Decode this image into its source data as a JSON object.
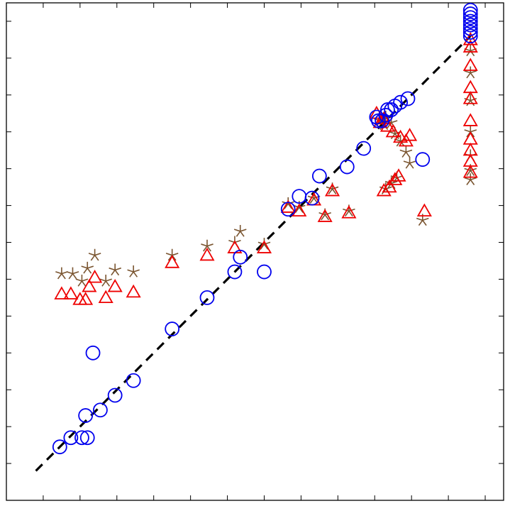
{
  "chart_data": {
    "type": "scatter",
    "title": "",
    "xlabel": "",
    "ylabel": "",
    "xlim": [
      0,
      13.5
    ],
    "ylim": [
      0,
      13.5
    ],
    "grid": false,
    "reference_line": {
      "x": [
        0.8,
        12.6
      ],
      "y": [
        0.8,
        12.6
      ],
      "style": "dashed",
      "color": "#000000"
    },
    "colors": {
      "circle": "#0000ee",
      "triangle": "#ee0000",
      "star": "#7a5530"
    },
    "series": [
      {
        "marker": "circle",
        "points": [
          [
            1.45,
            1.45
          ],
          [
            1.75,
            1.7
          ],
          [
            2.05,
            1.7
          ],
          [
            2.2,
            1.7
          ],
          [
            2.15,
            2.3
          ],
          [
            2.55,
            2.45
          ],
          [
            2.95,
            2.85
          ],
          [
            3.45,
            3.25
          ],
          [
            2.35,
            4.0
          ],
          [
            4.5,
            4.65
          ],
          [
            5.45,
            5.5
          ],
          [
            6.2,
            6.2
          ],
          [
            6.35,
            6.6
          ],
          [
            7.0,
            6.2
          ],
          [
            7.65,
            7.9
          ],
          [
            7.95,
            8.25
          ],
          [
            8.3,
            8.2
          ],
          [
            8.5,
            8.8
          ],
          [
            9.25,
            9.05
          ],
          [
            9.7,
            9.55
          ],
          [
            10.05,
            10.4
          ],
          [
            10.2,
            10.3
          ],
          [
            10.3,
            10.45
          ],
          [
            10.35,
            10.6
          ],
          [
            10.45,
            10.6
          ],
          [
            10.55,
            10.7
          ],
          [
            10.7,
            10.8
          ],
          [
            10.9,
            10.9
          ],
          [
            10.1,
            10.3
          ],
          [
            11.3,
            9.25
          ],
          [
            12.6,
            12.8
          ],
          [
            12.6,
            12.9
          ],
          [
            12.6,
            13.0
          ],
          [
            12.6,
            13.1
          ],
          [
            12.6,
            13.2
          ],
          [
            12.6,
            13.3
          ],
          [
            12.6,
            12.6
          ],
          [
            12.6,
            12.7
          ]
        ]
      },
      {
        "marker": "triangle",
        "points": [
          [
            1.5,
            5.6
          ],
          [
            1.75,
            5.6
          ],
          [
            2.0,
            5.45
          ],
          [
            2.15,
            5.45
          ],
          [
            2.25,
            5.8
          ],
          [
            2.4,
            6.05
          ],
          [
            2.7,
            5.5
          ],
          [
            2.95,
            5.8
          ],
          [
            3.45,
            5.65
          ],
          [
            4.5,
            6.45
          ],
          [
            5.45,
            6.65
          ],
          [
            6.2,
            6.85
          ],
          [
            7.0,
            6.85
          ],
          [
            7.65,
            7.95
          ],
          [
            7.95,
            7.85
          ],
          [
            8.35,
            8.15
          ],
          [
            8.65,
            7.7
          ],
          [
            8.85,
            8.4
          ],
          [
            9.3,
            7.8
          ],
          [
            10.05,
            10.5
          ],
          [
            10.15,
            10.25
          ],
          [
            10.25,
            10.35
          ],
          [
            10.35,
            10.15
          ],
          [
            10.5,
            10.0
          ],
          [
            10.7,
            9.85
          ],
          [
            10.85,
            9.75
          ],
          [
            10.95,
            9.9
          ],
          [
            11.35,
            7.85
          ],
          [
            10.25,
            8.4
          ],
          [
            10.4,
            8.5
          ],
          [
            10.55,
            8.7
          ],
          [
            10.65,
            8.8
          ],
          [
            12.6,
            12.5
          ],
          [
            12.6,
            12.3
          ],
          [
            12.6,
            11.8
          ],
          [
            12.6,
            11.2
          ],
          [
            12.6,
            10.9
          ],
          [
            12.6,
            10.3
          ],
          [
            12.6,
            9.8
          ],
          [
            12.6,
            9.5
          ],
          [
            12.6,
            9.2
          ],
          [
            12.6,
            8.9
          ]
        ]
      },
      {
        "marker": "star",
        "points": [
          [
            1.5,
            6.15
          ],
          [
            1.8,
            6.15
          ],
          [
            2.05,
            5.95
          ],
          [
            2.2,
            6.3
          ],
          [
            2.4,
            6.65
          ],
          [
            2.7,
            5.95
          ],
          [
            2.95,
            6.25
          ],
          [
            3.45,
            6.2
          ],
          [
            4.5,
            6.65
          ],
          [
            5.45,
            6.9
          ],
          [
            6.2,
            7.0
          ],
          [
            6.35,
            7.3
          ],
          [
            7.0,
            6.95
          ],
          [
            7.65,
            8.05
          ],
          [
            7.95,
            7.95
          ],
          [
            8.35,
            8.2
          ],
          [
            8.65,
            7.75
          ],
          [
            8.85,
            8.45
          ],
          [
            9.3,
            7.85
          ],
          [
            10.15,
            10.3
          ],
          [
            10.25,
            10.2
          ],
          [
            10.3,
            10.4
          ],
          [
            10.45,
            10.25
          ],
          [
            10.55,
            9.95
          ],
          [
            10.7,
            9.75
          ],
          [
            10.85,
            9.45
          ],
          [
            10.95,
            9.15
          ],
          [
            11.3,
            7.6
          ],
          [
            10.3,
            8.45
          ],
          [
            10.45,
            8.6
          ],
          [
            10.6,
            8.75
          ],
          [
            12.6,
            12.2
          ],
          [
            12.6,
            11.6
          ],
          [
            12.6,
            10.85
          ],
          [
            12.6,
            10.0
          ],
          [
            12.6,
            9.35
          ],
          [
            12.6,
            8.95
          ],
          [
            12.6,
            8.7
          ]
        ]
      }
    ]
  }
}
